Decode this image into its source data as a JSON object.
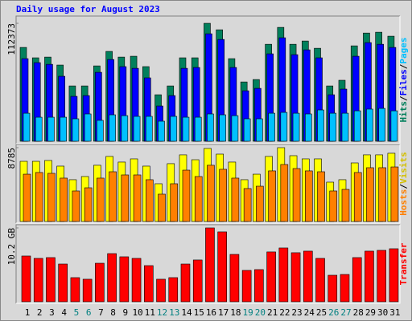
{
  "chart_data": [
    {
      "type": "bar",
      "title": "Daily usage for August 2023",
      "series": [
        {
          "name": "Hits",
          "color": "#00805c",
          "values": [
            89400,
            79500,
            80200,
            72600,
            52700,
            52700,
            71800,
            85600,
            80200,
            81000,
            71100,
            44300,
            52700,
            79500,
            79500,
            112373,
            106200,
            78700,
            56500,
            58800,
            92400,
            108500,
            92400,
            95500,
            88600,
            52700,
            58100,
            90900,
            103100,
            103900,
            100100
          ]
        },
        {
          "name": "Files",
          "color": "#0000ff",
          "values": [
            78700,
            74900,
            73300,
            61900,
            42800,
            43500,
            65700,
            77900,
            71100,
            69500,
            60400,
            33600,
            43500,
            69500,
            70300,
            102400,
            97000,
            70300,
            48100,
            50400,
            83300,
            98600,
            82500,
            87100,
            79500,
            44300,
            49700,
            81000,
            94000,
            92400,
            89400
          ]
        },
        {
          "name": "Pages",
          "color": "#00c0ff",
          "values": [
            26700,
            22900,
            22900,
            22900,
            21400,
            26000,
            19900,
            25200,
            24400,
            23700,
            23700,
            19100,
            23700,
            22900,
            22900,
            26000,
            25200,
            24400,
            21400,
            21400,
            26700,
            27500,
            26700,
            26000,
            29800,
            26700,
            26700,
            29000,
            30600,
            31300,
            29000
          ]
        }
      ],
      "ylim": [
        0,
        114700
      ],
      "yticks": [
        112373
      ],
      "legend_separator": "/"
    },
    {
      "type": "bar",
      "series": [
        {
          "name": "Visits",
          "color": "#ffff00",
          "values": [
            7160,
            7160,
            7260,
            6590,
            4970,
            5350,
            6690,
            7740,
            7070,
            7450,
            6590,
            4490,
            6880,
            7930,
            7350,
            8690,
            8020,
            7070,
            4970,
            5630,
            7740,
            8785,
            7830,
            7450,
            7450,
            4680,
            4970,
            6970,
            7930,
            7930,
            8120
          ]
        },
        {
          "name": "Hosts",
          "color": "#ff8000",
          "values": [
            5630,
            5830,
            5730,
            5160,
            3630,
            4010,
            5160,
            5920,
            5540,
            5540,
            4970,
            3250,
            4490,
            6110,
            5350,
            6690,
            6210,
            5160,
            3920,
            4200,
            6020,
            6780,
            6300,
            6020,
            5920,
            3630,
            3820,
            5830,
            6400,
            6400,
            6490
          ]
        }
      ],
      "ylim": [
        0,
        8975
      ],
      "yticks": [
        8785
      ],
      "legend_separator": "/",
      "legend_order": "reverse"
    },
    {
      "type": "bar",
      "series": [
        {
          "name": "Transfer",
          "color": "#ff0000",
          "values": [
            6.32,
            5.99,
            6.1,
            5.21,
            3.33,
            3.11,
            5.32,
            6.65,
            6.21,
            5.99,
            4.99,
            3.11,
            3.33,
            5.21,
            5.77,
            10.2,
            9.65,
            6.54,
            4.33,
            4.44,
            6.88,
            7.43,
            6.77,
            6.99,
            5.99,
            3.66,
            3.77,
            6.1,
            6.99,
            7.1,
            7.32
          ]
        }
      ],
      "ylim": [
        0,
        10.42
      ],
      "yticks": [
        {
          "value": 10.2,
          "label": "10.2 GB"
        }
      ],
      "categories": [
        "1",
        "2",
        "3",
        "4",
        "5",
        "6",
        "7",
        "8",
        "9",
        "10",
        "11",
        "12",
        "13",
        "14",
        "15",
        "16",
        "17",
        "18",
        "19",
        "20",
        "21",
        "22",
        "23",
        "24",
        "25",
        "26",
        "27",
        "28",
        "29",
        "30",
        "31"
      ],
      "category_colors": [
        "#000000",
        "#000000",
        "#000000",
        "#000000",
        "#008080",
        "#008080",
        "#000000",
        "#000000",
        "#000000",
        "#000000",
        "#000000",
        "#008080",
        "#008080",
        "#000000",
        "#000000",
        "#000000",
        "#000000",
        "#000000",
        "#008080",
        "#008080",
        "#000000",
        "#000000",
        "#000000",
        "#000000",
        "#000000",
        "#008080",
        "#008080",
        "#000000",
        "#000000",
        "#000000",
        "#000000"
      ]
    }
  ]
}
